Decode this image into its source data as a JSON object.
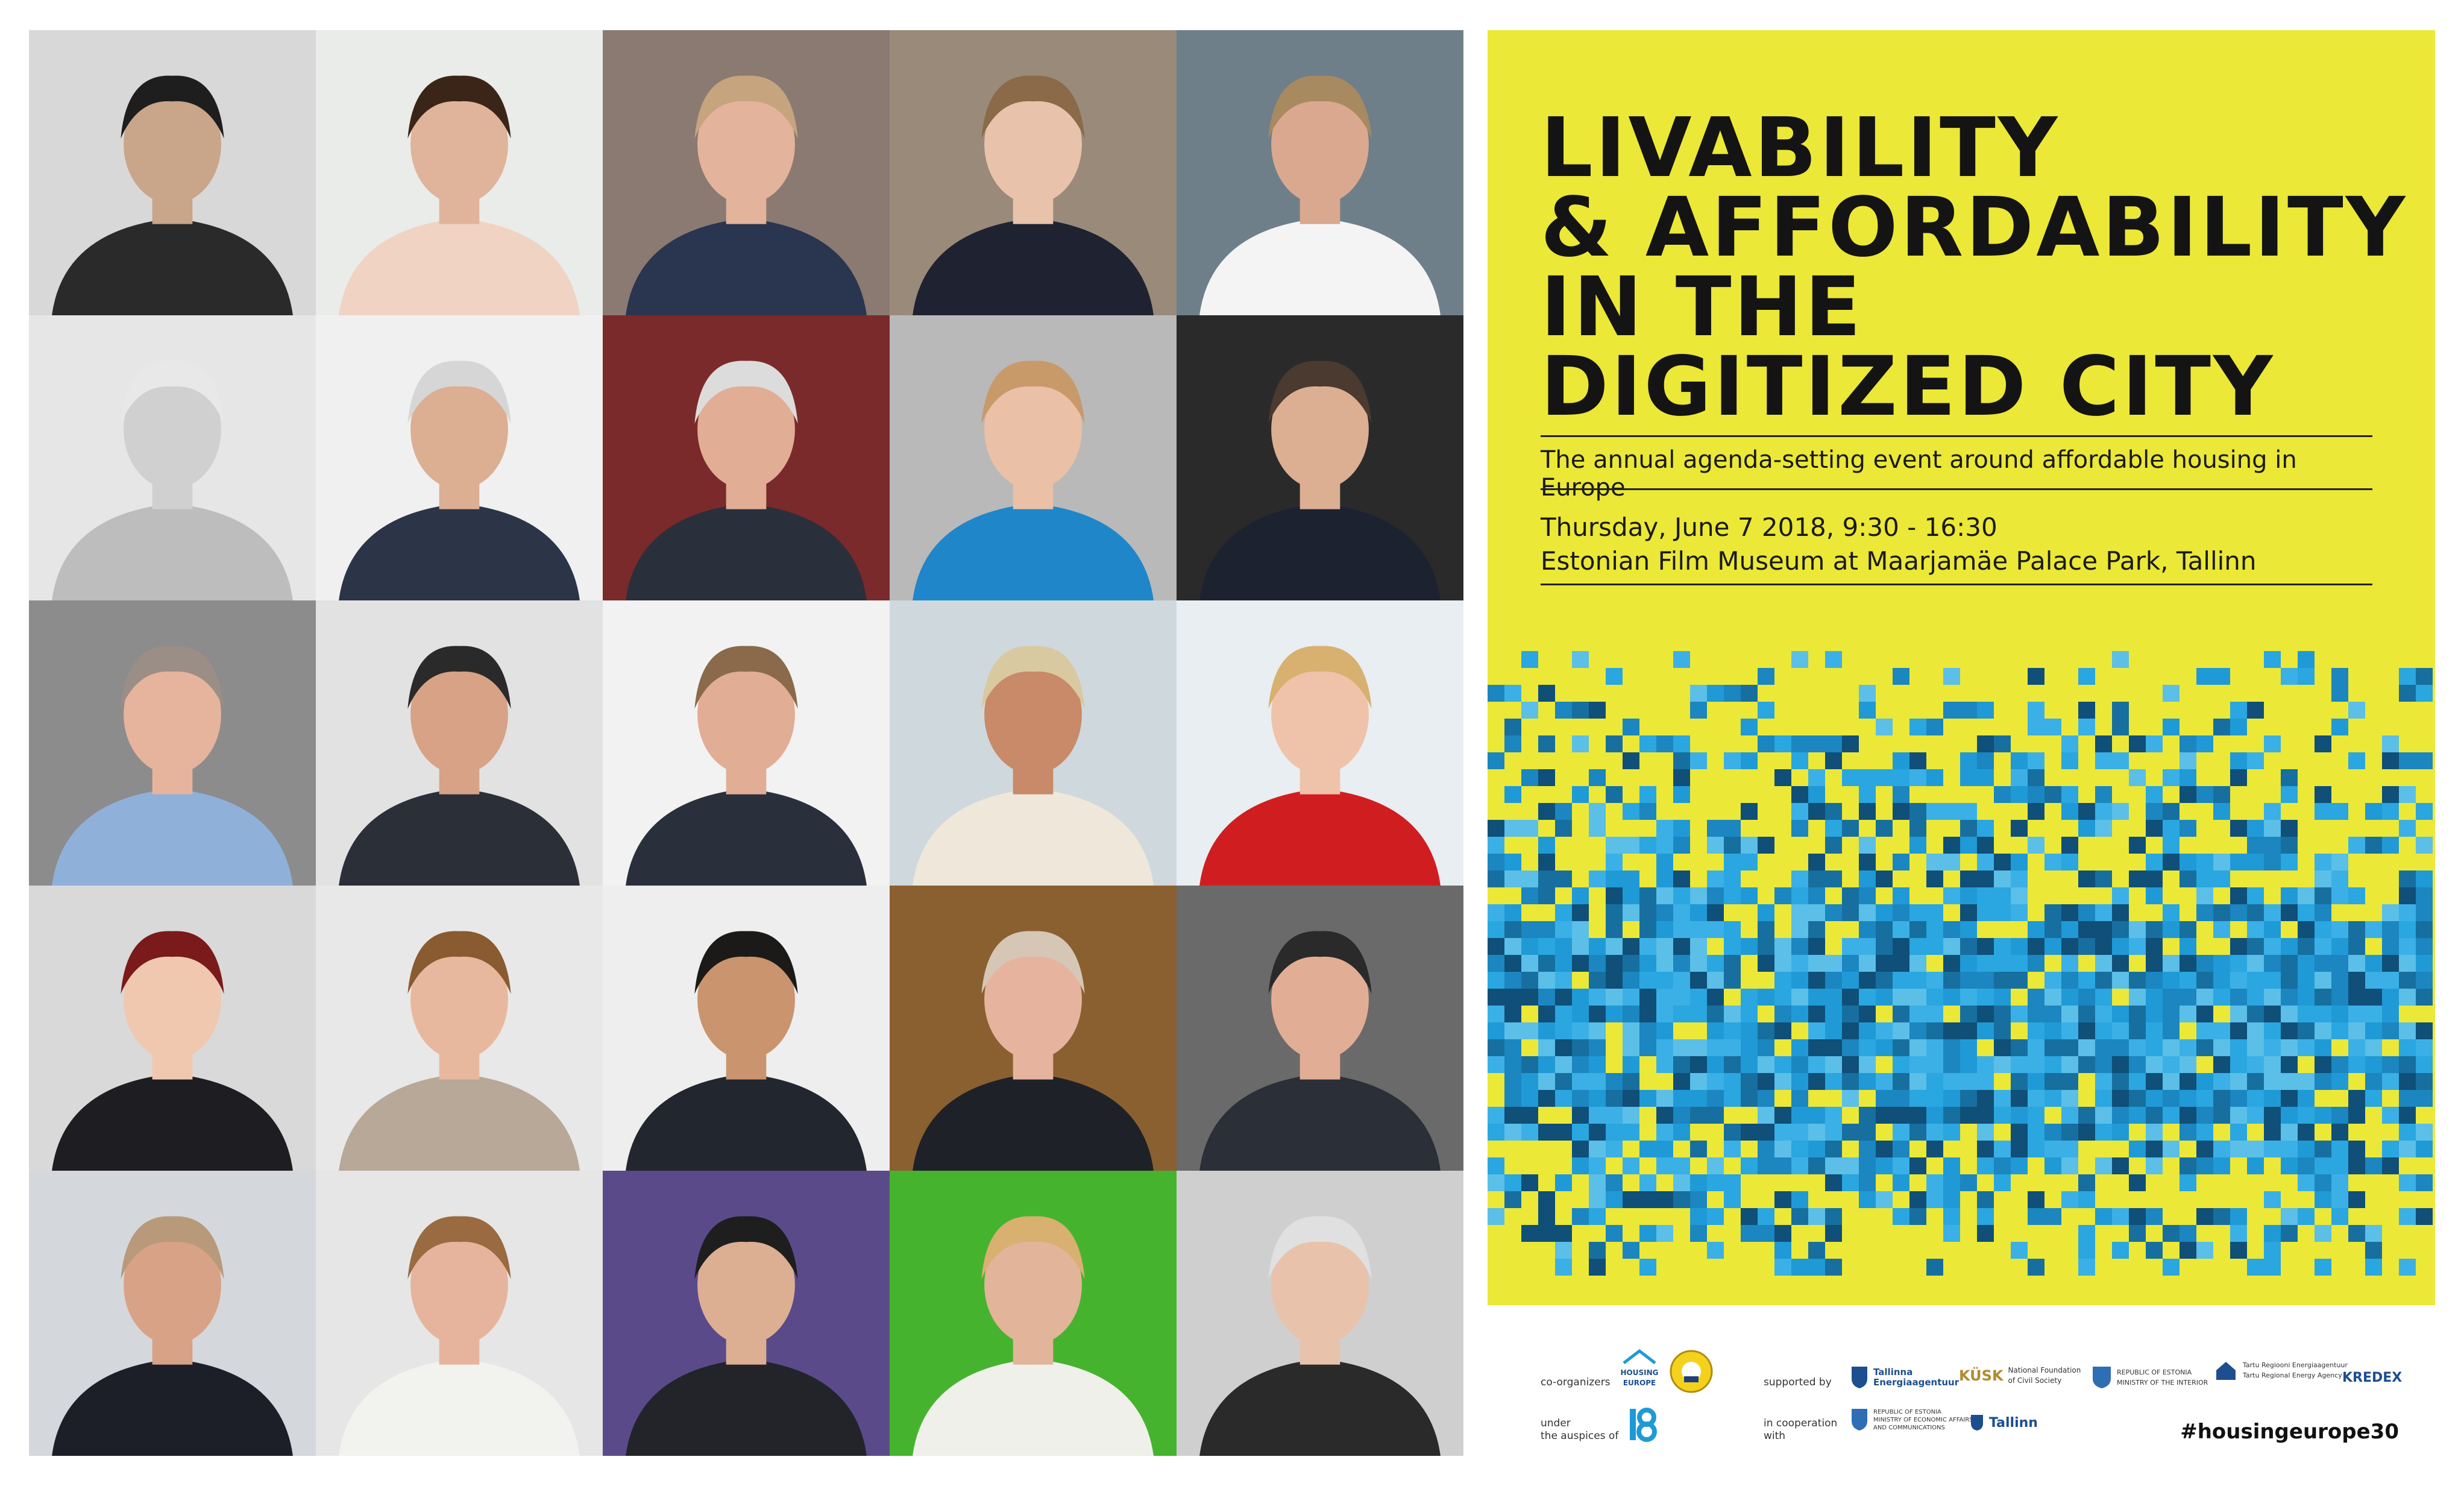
{
  "poster": {
    "title_lines": [
      "LIVABILITY",
      "& AFFORDABILITY",
      "IN THE",
      "DIGITIZED CITY"
    ],
    "tagline": "The annual agenda-setting event around affordable housing in Europe",
    "date_line": "Thursday, June 7 2018, 9:30 - 16:30",
    "venue_line": "Estonian Film Museum at Maarjamäe Palace Park, Tallinn",
    "colors": {
      "background": "#ebe838",
      "accent": "#1f9ad6",
      "text": "#141414"
    },
    "footer": {
      "co_organizers_label": "co-organizers",
      "auspices_label": "under\nthe auspices of",
      "supported_by_label": "supported by",
      "cooperation_label": "in cooperation\nwith",
      "housing_europe_logo": "HOUSING\nEUROPE",
      "tallinna_logo": "Tallinna\nEnergiaagentuur",
      "kusk_logo": "KÜSK",
      "kusk_sub": "National Foundation\nof Civil Society",
      "interior_logo": "REPUBLIC OF ESTONIA\nMINISTRY OF THE INTERIOR",
      "tartu_logo": "Tartu Regiooni Energiaagentuur\nTartu Regional Energy Agency",
      "kredex_logo": "KREDEX",
      "economic_logo": "REPUBLIC OF ESTONIA\nMINISTRY OF ECONOMIC AFFAIRS\nAND COMMUNICATIONS",
      "tallinn_logo": "Tallinn",
      "hashtag": "#housingeurope30"
    }
  }
}
